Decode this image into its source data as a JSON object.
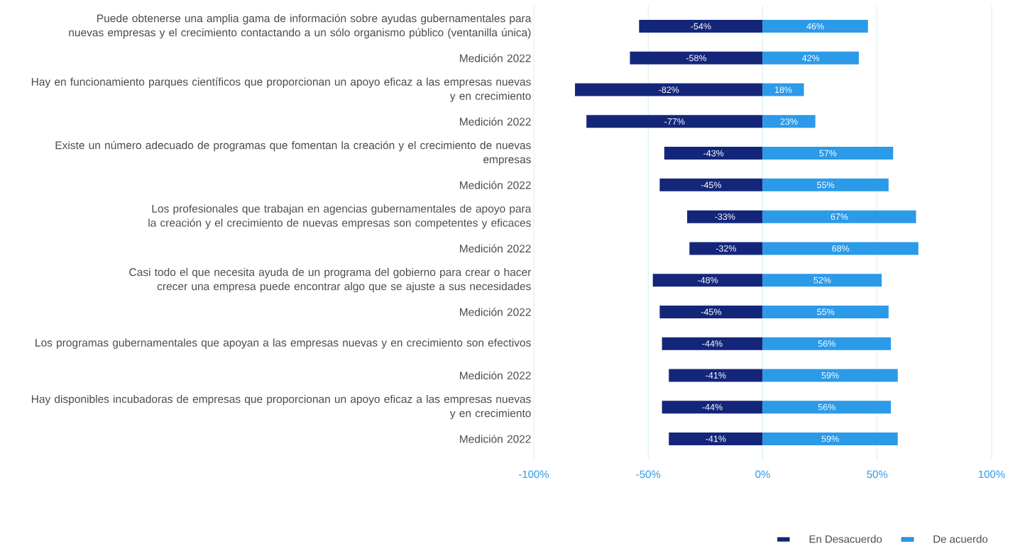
{
  "chart_data": {
    "type": "bar",
    "orientation": "horizontal",
    "stacked": true,
    "categories": [
      "Puede obtenerse una amplia gama de información sobre ayudas gubernamentales para nuevas empresas y el crecimiento contactando a un sólo organismo público (ventanilla única)",
      "Medición 2022",
      "Hay en funcionamiento parques científicos que proporcionan un apoyo eficaz a las empresas nuevas y en crecimiento",
      "Medición 2022",
      "Existe un número adecuado de programas que fomentan la creación y el crecimiento de nuevas empresas",
      "Medición 2022",
      "Los profesionales que trabajan en agencias gubernamentales de apoyo para la creación y el crecimiento de nuevas empresas son competentes y eficaces",
      "Medición 2022",
      "Casi todo el que necesita ayuda de un programa del gobierno para crear o hacer crecer una empresa puede encontrar algo que se ajuste a sus necesidades",
      "Medición 2022",
      "Los programas gubernamentales que apoyan a las empresas nuevas y en crecimiento son efectivos",
      "Medición 2022",
      "Hay disponibles incubadoras de empresas que proporcionan un apoyo eficaz a las empresas nuevas y en crecimiento",
      "Medición 2022"
    ],
    "series": [
      {
        "name": "En Desacuerdo",
        "color": "#14267a",
        "values": [
          -54,
          -58,
          -82,
          -77,
          -43,
          -45,
          -33,
          -32,
          -48,
          -45,
          -44,
          -41,
          -44,
          -41
        ],
        "value_labels": [
          "-54%",
          "-58%",
          "-82%",
          "-77%",
          "-43%",
          "-45%",
          "-33%",
          "-32%",
          "-48%",
          "-45%",
          "-44%",
          "-41%",
          "-44%",
          "-41%"
        ]
      },
      {
        "name": "De acuerdo",
        "color": "#2b9ae8",
        "values": [
          46,
          42,
          18,
          23,
          57,
          55,
          67,
          68,
          52,
          55,
          56,
          59,
          56,
          59
        ],
        "value_labels": [
          "46%",
          "42%",
          "18%",
          "23%",
          "57%",
          "55%",
          "67%",
          "68%",
          "52%",
          "55%",
          "56%",
          "59%",
          "56%",
          "59%"
        ]
      }
    ],
    "xlim": [
      -100,
      100
    ],
    "xticks": [
      {
        "value": -100,
        "label": "-100%"
      },
      {
        "value": -50,
        "label": "-50%"
      },
      {
        "value": 0,
        "label": "0%"
      },
      {
        "value": 50,
        "label": "50%"
      },
      {
        "value": 100,
        "label": "100%"
      }
    ],
    "grid": "x",
    "legend": "bottom right"
  }
}
